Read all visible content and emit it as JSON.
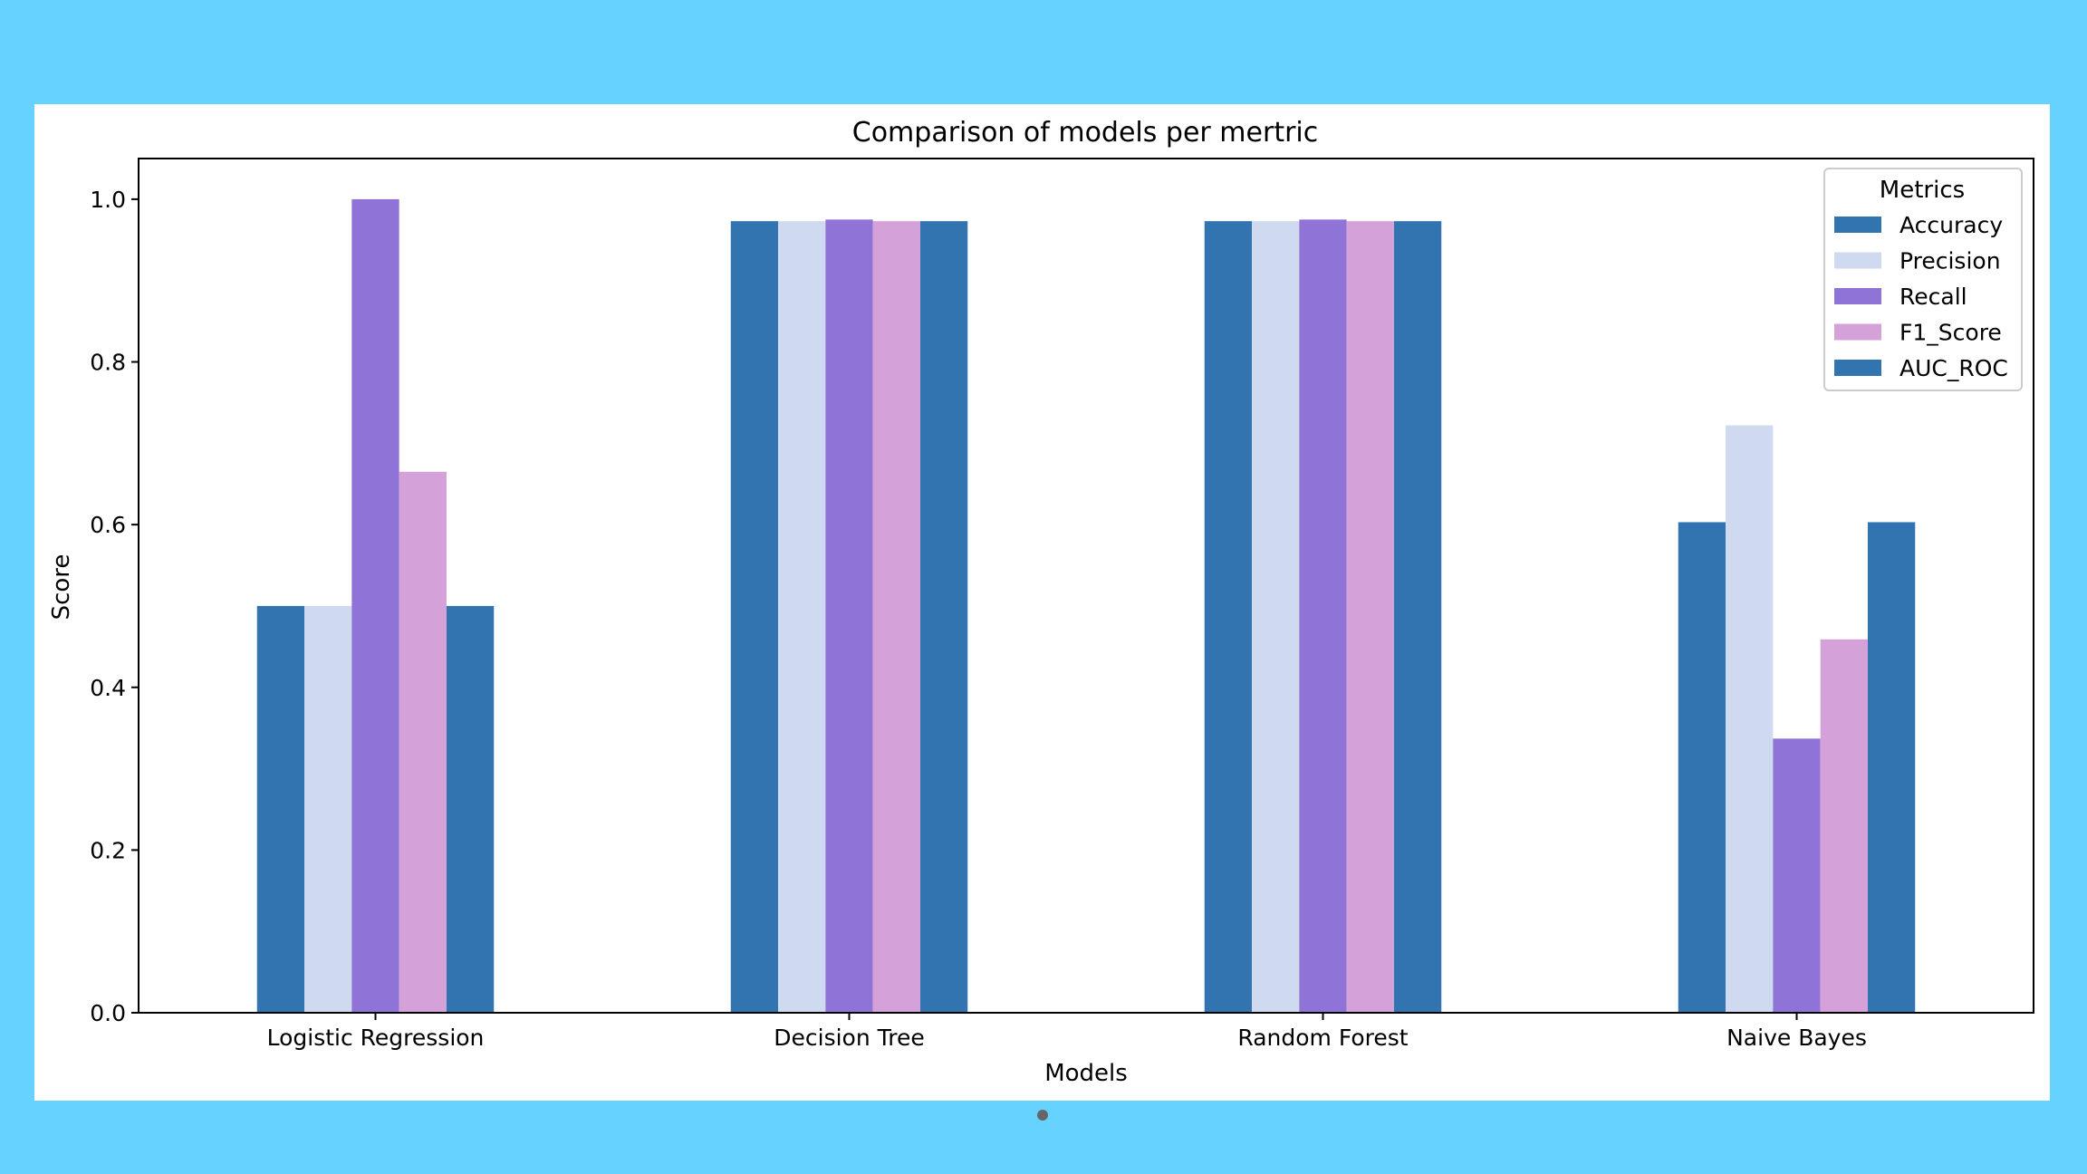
{
  "chart_data": {
    "type": "bar",
    "title": "Comparison of models per mertric",
    "xlabel": "Models",
    "ylabel": "Score",
    "ylim": [
      0,
      1.05
    ],
    "yticks": [
      "0.0",
      "0.2",
      "0.4",
      "0.6",
      "0.8",
      "1.0"
    ],
    "categories": [
      "Logistic Regression",
      "Decision Tree",
      "Random Forest",
      "Naive Bayes"
    ],
    "legend": {
      "title": "Metrics",
      "placement": "top-right"
    },
    "grid": false,
    "series": [
      {
        "name": "Accuracy",
        "color": "#3274b0",
        "values": [
          0.5,
          0.973,
          0.973,
          0.603
        ]
      },
      {
        "name": "Precision",
        "color": "#cfdaf1",
        "values": [
          0.5,
          0.973,
          0.973,
          0.722
        ]
      },
      {
        "name": "Recall",
        "color": "#8f73d6",
        "values": [
          1.0,
          0.975,
          0.975,
          0.337
        ]
      },
      {
        "name": "F1_Score",
        "color": "#d4a2d8",
        "values": [
          0.665,
          0.973,
          0.973,
          0.459
        ]
      },
      {
        "name": "AUC_ROC",
        "color": "#3274b0",
        "values": [
          0.5,
          0.973,
          0.973,
          0.603
        ]
      }
    ]
  }
}
